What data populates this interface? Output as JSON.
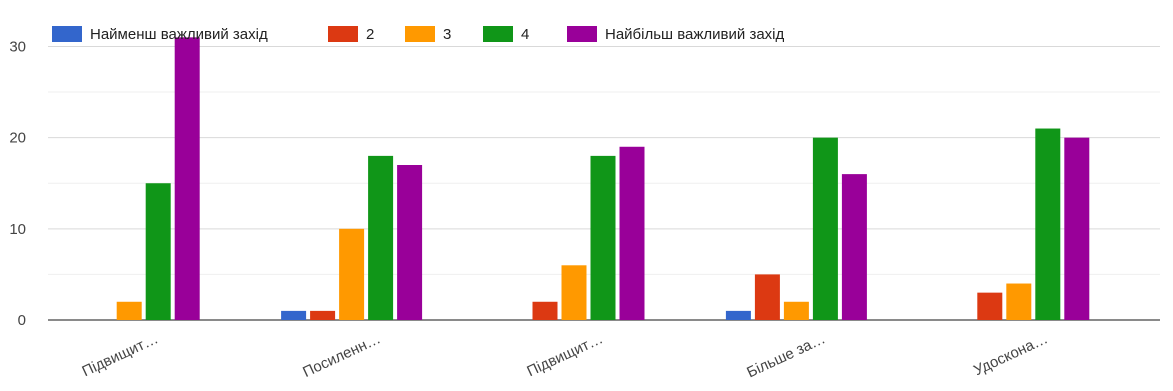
{
  "chart_data": {
    "type": "bar",
    "categories": [
      "Підвищит…",
      "Посиленн…",
      "Підвищит…",
      "Більше за…",
      "Удоскона…"
    ],
    "series": [
      {
        "name": "Найменш важливий захід",
        "color": "#3366cc",
        "values": [
          0,
          1,
          0,
          1,
          0
        ]
      },
      {
        "name": "2",
        "color": "#dc3912",
        "values": [
          0,
          1,
          2,
          5,
          3
        ]
      },
      {
        "name": "3",
        "color": "#ff9900",
        "values": [
          2,
          10,
          6,
          2,
          4
        ]
      },
      {
        "name": "4",
        "color": "#109618",
        "values": [
          15,
          18,
          18,
          20,
          21
        ]
      },
      {
        "name": "Найбільш важливий захід",
        "color": "#990099",
        "values": [
          31,
          17,
          19,
          16,
          20
        ]
      }
    ],
    "yticks": [
      0,
      10,
      20,
      30
    ],
    "ylim": [
      0,
      34
    ],
    "grid": true,
    "legend_position": "top-left"
  }
}
